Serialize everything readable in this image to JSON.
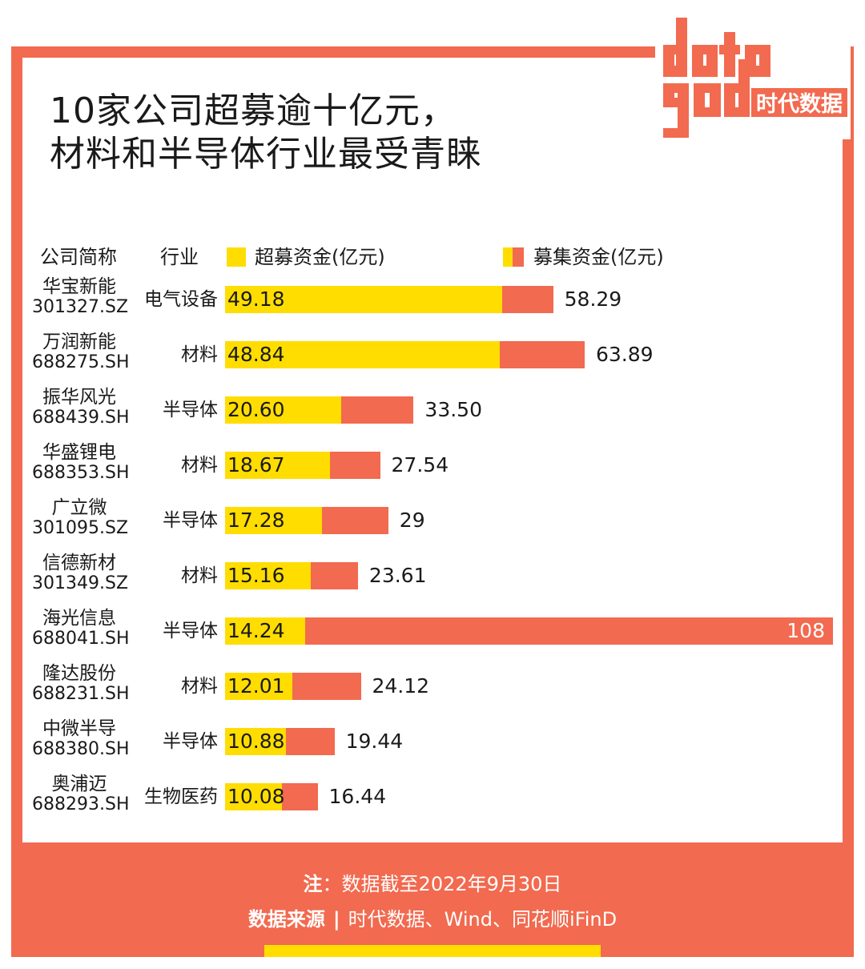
{
  "title": {
    "line1": "10家公司超募逾十亿元，",
    "line2": "材料和半导体行业最受青睐"
  },
  "logo": {
    "mark": "data god",
    "name": "时代数据"
  },
  "header": {
    "company": "公司简称",
    "industry": "行业",
    "legend_over": "超募资金(亿元)",
    "legend_total": "募集资金(亿元)"
  },
  "colors": {
    "over": "#ffdd00",
    "total": "#f26a4f"
  },
  "chart_data": {
    "type": "bar",
    "orientation": "horizontal",
    "title": "10家公司超募逾十亿元，材料和半导体行业最受青睐",
    "series": [
      {
        "name": "超募资金(亿元)",
        "values": [
          49.18,
          48.84,
          20.6,
          18.67,
          17.28,
          15.16,
          14.24,
          12.01,
          10.88,
          10.08
        ]
      },
      {
        "name": "募集资金(亿元)",
        "values": [
          58.29,
          63.89,
          33.5,
          27.54,
          29,
          23.61,
          108,
          24.12,
          19.44,
          16.44
        ]
      }
    ],
    "xlim": [
      0,
      108
    ],
    "rows": [
      {
        "name": "华宝新能",
        "code": "301327.SZ",
        "industry": "电气设备",
        "over": 49.18,
        "over_label": "49.18",
        "total": 58.29,
        "total_label": "58.29"
      },
      {
        "name": "万润新能",
        "code": "688275.SH",
        "industry": "材料",
        "over": 48.84,
        "over_label": "48.84",
        "total": 63.89,
        "total_label": "63.89"
      },
      {
        "name": "振华风光",
        "code": "688439.SH",
        "industry": "半导体",
        "over": 20.6,
        "over_label": "20.60",
        "total": 33.5,
        "total_label": "33.50"
      },
      {
        "name": "华盛锂电",
        "code": "688353.SH",
        "industry": "材料",
        "over": 18.67,
        "over_label": "18.67",
        "total": 27.54,
        "total_label": "27.54"
      },
      {
        "name": "广立微",
        "code": "301095.SZ",
        "industry": "半导体",
        "over": 17.28,
        "over_label": "17.28",
        "total": 29,
        "total_label": "29"
      },
      {
        "name": "信德新材",
        "code": "301349.SZ",
        "industry": "材料",
        "over": 15.16,
        "over_label": "15.16",
        "total": 23.61,
        "total_label": "23.61"
      },
      {
        "name": "海光信息",
        "code": "688041.SH",
        "industry": "半导体",
        "over": 14.24,
        "over_label": "14.24",
        "total": 108,
        "total_label": "108"
      },
      {
        "name": "隆达股份",
        "code": "688231.SH",
        "industry": "材料",
        "over": 12.01,
        "over_label": "12.01",
        "total": 24.12,
        "total_label": "24.12"
      },
      {
        "name": "中微半导",
        "code": "688380.SH",
        "industry": "半导体",
        "over": 10.88,
        "over_label": "10.88",
        "total": 19.44,
        "total_label": "19.44"
      },
      {
        "name": "奥浦迈",
        "code": "688293.SH",
        "industry": "生物医药",
        "over": 10.08,
        "over_label": "10.08",
        "total": 16.44,
        "total_label": "16.44"
      }
    ]
  },
  "footer": {
    "note_label": "注",
    "note_text": "：数据截至2022年9月30日",
    "source_label": "数据来源",
    "source_sep": "|",
    "source_text": "时代数据、Wind、同花顺iFinD"
  }
}
